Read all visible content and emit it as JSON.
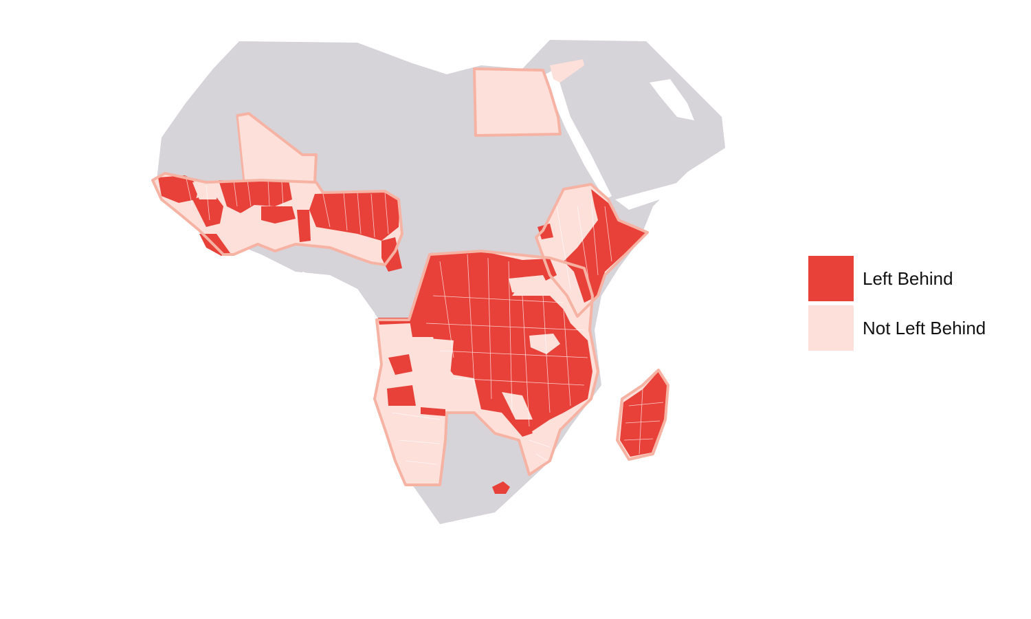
{
  "map": {
    "colors": {
      "land": "#d6d3d9",
      "left_behind": "#e8413a",
      "not_left_behind": "#fde0d9",
      "outline": "#f6b3a4",
      "boundary": "#ffffff"
    }
  },
  "legend": {
    "items": [
      {
        "label": "Left Behind",
        "color": "#e8413a"
      },
      {
        "label": "Not Left Behind",
        "color": "#fde0d9"
      }
    ]
  }
}
